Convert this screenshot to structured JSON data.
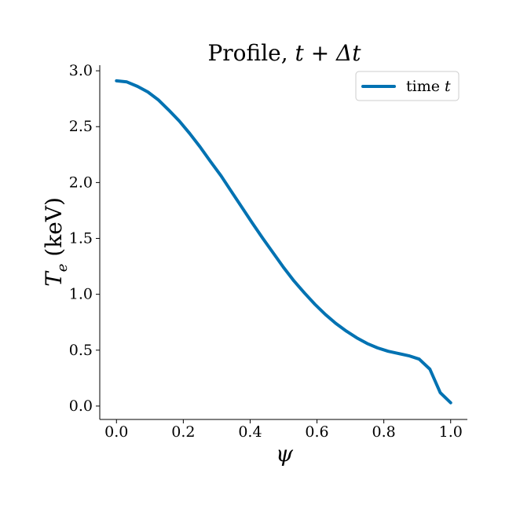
{
  "chart_data": {
    "type": "line",
    "title_prefix": "Profile, ",
    "title_math": "t + Δt",
    "xlabel": "ψ",
    "ylabel_symbol": "T",
    "ylabel_subscript": "e",
    "ylabel_unit": " (keV)",
    "xlim": [
      -0.05,
      1.05
    ],
    "ylim": [
      -0.12,
      3.05
    ],
    "xticks": [
      0.0,
      0.2,
      0.4,
      0.6,
      0.8,
      1.0
    ],
    "xtick_labels": [
      "0.0",
      "0.2",
      "0.4",
      "0.6",
      "0.8",
      "1.0"
    ],
    "yticks": [
      0.0,
      0.5,
      1.0,
      1.5,
      2.0,
      2.5,
      3.0
    ],
    "ytick_labels": [
      "0.0",
      "0.5",
      "1.0",
      "1.5",
      "2.0",
      "2.5",
      "3.0"
    ],
    "grid": false,
    "legend_position": "top-right",
    "series": [
      {
        "name_prefix": "time ",
        "name_math": "t",
        "color": "#0072b2",
        "x": [
          0.0,
          0.031,
          0.063,
          0.094,
          0.125,
          0.156,
          0.188,
          0.219,
          0.25,
          0.281,
          0.313,
          0.344,
          0.375,
          0.406,
          0.438,
          0.469,
          0.5,
          0.531,
          0.563,
          0.594,
          0.625,
          0.656,
          0.688,
          0.719,
          0.75,
          0.781,
          0.813,
          0.844,
          0.875,
          0.906,
          0.938,
          0.969,
          1.0
        ],
        "y": [
          2.91,
          2.9,
          2.86,
          2.81,
          2.74,
          2.65,
          2.55,
          2.44,
          2.32,
          2.19,
          2.06,
          1.92,
          1.78,
          1.64,
          1.5,
          1.37,
          1.24,
          1.12,
          1.01,
          0.91,
          0.82,
          0.74,
          0.67,
          0.61,
          0.56,
          0.52,
          0.49,
          0.47,
          0.45,
          0.42,
          0.33,
          0.12,
          0.03
        ]
      }
    ]
  }
}
